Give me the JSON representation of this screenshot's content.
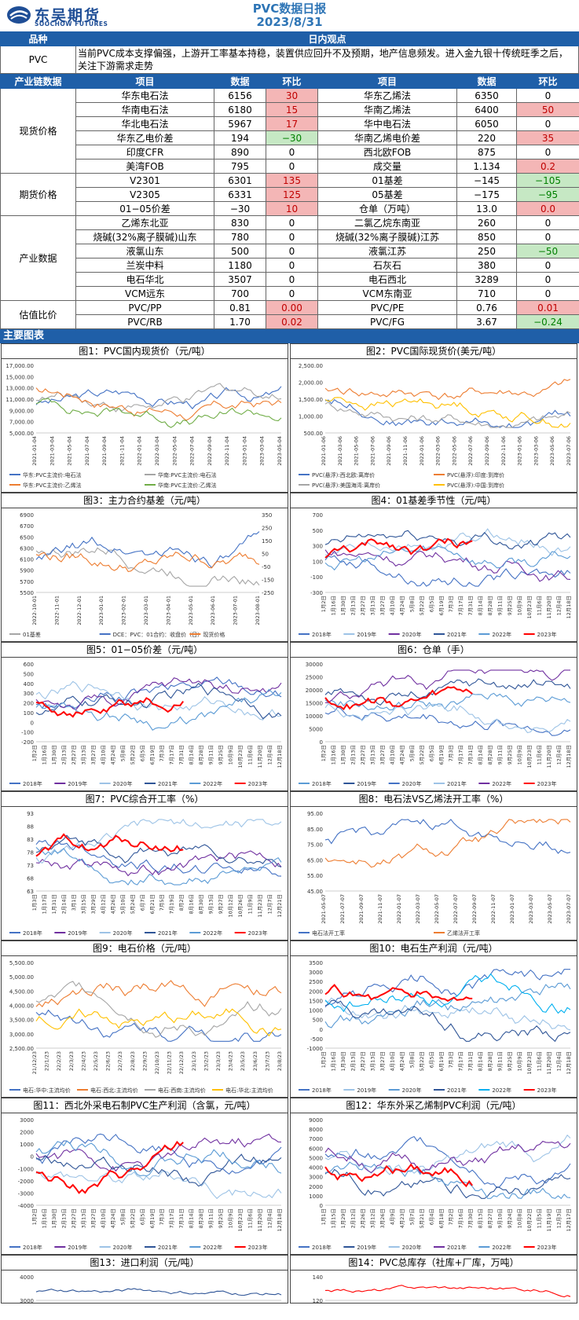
{
  "header": {
    "logo_cn": "东吴期货",
    "logo_en": "SOOCHOW FUTURES",
    "title": "PVC数据日报",
    "date": "2023/8/31"
  },
  "view": {
    "col1": "品种",
    "col2": "日内观点",
    "product": "PVC",
    "text": "当前PVC成本支撑偏强，上游开工率基本持稳，装置供应回升不及预期，地产信息频发。进入金九银十传统旺季之后，关注下游需求走势"
  },
  "table_header": [
    "产业链数据",
    "项目",
    "数据",
    "环比",
    "项目",
    "数据",
    "环比"
  ],
  "groups": [
    {
      "name": "现货价格",
      "rows": [
        [
          "华东电石法",
          "6156",
          "30",
          "r",
          "华东乙烯法",
          "6350",
          "0",
          ""
        ],
        [
          "华南电石法",
          "6180",
          "15",
          "r",
          "华南乙烯法",
          "6400",
          "50",
          "r"
        ],
        [
          "华北电石法",
          "5967",
          "17",
          "r",
          "华中电石法",
          "6050",
          "0",
          ""
        ],
        [
          "华东乙电价差",
          "194",
          "−30",
          "g",
          "华南乙烯电价差",
          "220",
          "35",
          "r"
        ],
        [
          "印度CFR",
          "890",
          "0",
          "",
          "西北欧FOB",
          "875",
          "0",
          ""
        ],
        [
          "美湾FOB",
          "795",
          "0",
          "",
          "成交量",
          "1.134",
          "0.2",
          "r"
        ]
      ]
    },
    {
      "name": "期货价格",
      "rows": [
        [
          "V2301",
          "6301",
          "135",
          "r",
          "01基差",
          "−145",
          "−105",
          "g"
        ],
        [
          "V2305",
          "6331",
          "125",
          "r",
          "05基差",
          "−175",
          "−95",
          "g"
        ],
        [
          "01−05价差",
          "−30",
          "10",
          "r",
          "仓单（万吨）",
          "13.0",
          "0.0",
          "r"
        ]
      ]
    },
    {
      "name": "产业数据",
      "rows": [
        [
          "乙烯东北亚",
          "830",
          "0",
          "",
          "二氯乙烷东南亚",
          "260",
          "0",
          ""
        ],
        [
          "烧碱(32%离子膜碱)山东",
          "780",
          "0",
          "",
          "烧碱(32%离子膜碱)江苏",
          "850",
          "0",
          ""
        ],
        [
          "液氯山东",
          "500",
          "0",
          "",
          "液氯江苏",
          "250",
          "−50",
          "g"
        ],
        [
          "兰炭中料",
          "1180",
          "0",
          "",
          "石灰石",
          "380",
          "0",
          ""
        ],
        [
          "电石华北",
          "3507",
          "0",
          "",
          "电石西北",
          "3289",
          "0",
          ""
        ],
        [
          "VCM远东",
          "700",
          "0",
          "",
          "VCM东南亚",
          "710",
          "0",
          ""
        ]
      ]
    },
    {
      "name": "估值比价",
      "rows": [
        [
          "PVC/PP",
          "0.81",
          "0.00",
          "r",
          "PVC/PE",
          "0.76",
          "0.01",
          "r"
        ],
        [
          "PVC/RB",
          "1.70",
          "0.02",
          "r",
          "PVC/FG",
          "3.67",
          "−0.24",
          "g"
        ]
      ]
    }
  ],
  "charts_title": "主要图表",
  "charts": [
    {
      "title": "图1：PVC国内现货价（元/吨）",
      "yticks": [
        "17,000.00",
        "15,000.00",
        "13,000.00",
        "11,000.00",
        "9,000.00",
        "7,000.00",
        "5,000.00"
      ],
      "xticks": [
        "2021-01-04",
        "2021-03-04",
        "2021-05-04",
        "2021-07-04",
        "2021-09-04",
        "2021-11-04",
        "2022-01-04",
        "2022-03-04",
        "2022-05-04",
        "2022-07-04",
        "2022-09-04",
        "2022-11-04",
        "2023-01-04",
        "2023-03-04",
        "2023-05-04"
      ],
      "legend": [
        "华东:PVC主流价:电石法",
        "华南:PVC主流价:电石法",
        "华东:PVC主流价:乙烯法",
        "华南:PVC主流价:乙烯法"
      ],
      "colors": [
        "#4472c4",
        "#a5a5a5",
        "#ed7d31",
        "#70ad47"
      ]
    },
    {
      "title": "图2：PVC国际现货价(美元/吨）",
      "yticks": [
        "2,500.00",
        "2,000.00",
        "1,500.00",
        "1,000.00",
        "500.00"
      ],
      "xticks": [
        "2021-01-06",
        "2021-03-06",
        "2021-05-06",
        "2021-07-06",
        "2021-09-06",
        "2021-11-06",
        "2022-01-06",
        "2022-03-06",
        "2022-05-06",
        "2022-07-06",
        "2022-09-06",
        "2022-11-06",
        "2023-01-06",
        "2023-03-06",
        "2023-05-06",
        "2023-07-06"
      ],
      "legend": [
        "PVC(悬浮):西北欧:离岸价",
        "PVC(悬浮):印度:到岸价",
        "PVC(悬浮):美国海湾:离岸价",
        "PVC(悬浮):中国:到岸价"
      ],
      "colors": [
        "#4472c4",
        "#ed7d31",
        "#a5a5a5",
        "#ffc000"
      ]
    },
    {
      "title": "图3：主力合约基差（元/吨）",
      "yticks": [
        "6900",
        "6700",
        "6500",
        "6300",
        "6100",
        "5900",
        "5700",
        "5500"
      ],
      "y2ticks": [
        "350",
        "250",
        "150",
        "50",
        "-50",
        "-150",
        "-250"
      ],
      "xticks": [
        "2022-10-01",
        "2022-11-01",
        "2022-12-01",
        "2023-01-01",
        "2023-02-01",
        "2023-03-01",
        "2023-04-01",
        "2023-05-01",
        "2023-06-01",
        "2023-07-01",
        "2023-08-01"
      ],
      "legend": [
        "01基差",
        "DCE：PVC：01合约：收盘价（日）",
        "现货价格"
      ],
      "colors": [
        "#a5a5a5",
        "#4472c4",
        "#ed7d31"
      ]
    },
    {
      "title": "图4：01基差季节性（元/吨）",
      "yticks": [
        "700",
        "500",
        "300",
        "100",
        "-100",
        "-300"
      ],
      "xticks": [
        "1月2日",
        "1月16日",
        "1月30日",
        "2月13日",
        "2月27日",
        "3月13日",
        "3月27日",
        "4月10日",
        "4月24日",
        "5月8日",
        "5月22日",
        "6月5日",
        "6月19日",
        "7月3日",
        "7月17日",
        "7月31日",
        "8月14日",
        "8月28日",
        "9月11日",
        "9月25日",
        "10月9日",
        "10月23日",
        "11月6日",
        "11月20日",
        "12月4日",
        "12月18日"
      ],
      "legend": [
        "2018年",
        "2019年",
        "2020年",
        "2021年",
        "2022年",
        "2023年"
      ],
      "colors": [
        "#4472c4",
        "#9dc3e6",
        "#7030a0",
        "#2f5597",
        "#5b9bd5",
        "#ff0000"
      ]
    },
    {
      "title": "图5：01−05价差（元/吨）",
      "yticks": [
        "600",
        "500",
        "400",
        "300",
        "200",
        "100",
        "0",
        "-100",
        "-200"
      ],
      "xticks": [
        "1月2日",
        "1月16日",
        "1月30日",
        "2月13日",
        "2月27日",
        "3月13日",
        "3月27日",
        "4月10日",
        "4月24日",
        "5月8日",
        "5月22日",
        "6月5日",
        "6月19日",
        "7月3日",
        "7月17日",
        "7月31日",
        "8月14日",
        "8月28日",
        "9月11日",
        "9月25日",
        "10月9日",
        "10月23日",
        "11月6日",
        "11月20日",
        "12月4日",
        "12月18日"
      ],
      "legend": [
        "2018年",
        "2019年",
        "2020年",
        "2021年",
        "2022年",
        "2023年"
      ],
      "colors": [
        "#4472c4",
        "#7030a0",
        "#9dc3e6",
        "#2f5597",
        "#5b9bd5",
        "#ff0000"
      ]
    },
    {
      "title": "图6：仓单（手）",
      "yticks": [
        "30000",
        "25000",
        "20000",
        "15000",
        "10000",
        "5000",
        "0"
      ],
      "xticks": [
        "1月2日",
        "1月16日",
        "1月30日",
        "2月13日",
        "2月27日",
        "3月13日",
        "3月27日",
        "4月10日",
        "4月24日",
        "5月8日",
        "5月22日",
        "6月5日",
        "6月19日",
        "7月3日",
        "7月17日",
        "7月31日",
        "8月14日",
        "8月28日",
        "9月11日",
        "9月25日",
        "10月9日",
        "10月23日",
        "11月6日",
        "11月20日",
        "12月4日",
        "12月18日"
      ],
      "legend": [
        "2018年",
        "2019年",
        "2020年",
        "2021年",
        "2022年",
        "2023年"
      ],
      "colors": [
        "#5b9bd5",
        "#2f5597",
        "#4472c4",
        "#9dc3e6",
        "#7030a0",
        "#ff0000"
      ]
    },
    {
      "title": "图7：PVC综合开工率（%）",
      "yticks": [
        "93",
        "88",
        "83",
        "78",
        "73",
        "68",
        "63"
      ],
      "xticks": [
        "1月3日",
        "1月17日",
        "1月31日",
        "2月14日",
        "3月1日",
        "3月15日",
        "3月29日",
        "4月12日",
        "4月26日",
        "5月10日",
        "5月24日",
        "6月7日",
        "6月21日",
        "7月5日",
        "7月19日",
        "8月2日",
        "8月16日",
        "8月30日",
        "9月13日",
        "9月27日",
        "10月12日",
        "10月26日",
        "11月9日",
        "11月23日",
        "12月7日",
        "12月21日"
      ],
      "legend": [
        "2018年",
        "2019年",
        "2020年",
        "2021年",
        "2022年",
        "2023年"
      ],
      "colors": [
        "#4472c4",
        "#7030a0",
        "#9dc3e6",
        "#2f5597",
        "#5b9bd5",
        "#ff0000"
      ]
    },
    {
      "title": "图8：电石法VS乙烯法开工率（%）",
      "yticks": [
        "95.00",
        "85.00",
        "75.00",
        "65.00",
        "55.00",
        "45.00"
      ],
      "xticks": [
        "2021-05-07",
        "2021-07-07",
        "2021-09-07",
        "2021-11-07",
        "2022-01-07",
        "2022-03-07",
        "2022-05-07",
        "2022-07-07",
        "2022-09-07",
        "2022-11-07",
        "2023-01-07",
        "2023-03-07",
        "2023-05-07",
        "2023-07-07"
      ],
      "legend": [
        "电石法开工率",
        "乙烯法开工率"
      ],
      "colors": [
        "#4472c4",
        "#ed7d31"
      ]
    },
    {
      "title": "图9：电石价格（元/吨）",
      "yticks": [
        "5,500.00",
        "5,000.00",
        "4,500.00",
        "4,000.00",
        "3,500.00",
        "3,000.00",
        "2,500.00"
      ],
      "xticks": [
        "21/12/23",
        "22/1/23",
        "22/2/23",
        "22/3/23",
        "22/4/23",
        "22/5/23",
        "22/6/23",
        "22/7/23",
        "22/8/23",
        "22/9/23",
        "22/10/23",
        "22/11/23",
        "22/12/23",
        "23/1/23",
        "23/2/23",
        "23/3/23",
        "23/4/23",
        "23/5/23",
        "23/6/23",
        "23/7/23",
        "23/8/23"
      ],
      "legend": [
        "电石:华中:主流均价",
        "电石:西北:主流均价",
        "电石:西南:主流均价",
        "电石:华北:主流均价"
      ],
      "colors": [
        "#4472c4",
        "#ed7d31",
        "#a5a5a5",
        "#ffc000"
      ]
    },
    {
      "title": "图10：电石生产利润（元/吨）",
      "yticks": [
        "3500",
        "3000",
        "2500",
        "2000",
        "1500",
        "1000",
        "500",
        "0",
        "-500",
        "-1000"
      ],
      "xticks": [
        "1月2日",
        "1月16日",
        "1月30日",
        "2月13日",
        "2月27日",
        "3月13日",
        "3月27日",
        "4月10日",
        "4月24日",
        "5月8日",
        "5月22日",
        "6月5日",
        "6月19日",
        "7月3日",
        "7月17日",
        "7月31日",
        "8月14日",
        "8月28日",
        "9月11日",
        "9月25日",
        "10月9日",
        "10月23日",
        "11月6日",
        "11月20日",
        "12月4日",
        "12月18日"
      ],
      "legend": [
        "2018年",
        "2019年",
        "2020年",
        "2021年",
        "2022年",
        "2023年"
      ],
      "colors": [
        "#4472c4",
        "#9dc3e6",
        "#5b9bd5",
        "#2f5597",
        "#00b0f0",
        "#ff0000"
      ]
    },
    {
      "title": "图11：西北外采电石制PVC生产利润（含氯，元/吨）",
      "yticks": [
        "3000",
        "2000",
        "1000",
        "0",
        "-1000",
        "-2000",
        "-3000",
        "-4000"
      ],
      "xticks": [
        "1月2日",
        "1月16日",
        "1月30日",
        "2月13日",
        "2月27日",
        "3月13日",
        "3月27日",
        "4月10日",
        "4月24日",
        "5月8日",
        "5月22日",
        "6月5日",
        "6月19日",
        "7月3日",
        "7月17日",
        "7月31日",
        "8月14日",
        "8月28日",
        "9月11日",
        "9月25日",
        "10月9日",
        "10月23日",
        "11月6日",
        "11月20日",
        "12月4日",
        "12月18日"
      ],
      "legend": [
        "2018年",
        "2019年",
        "2020年",
        "2021年",
        "2022年",
        "2023年"
      ],
      "colors": [
        "#4472c4",
        "#7030a0",
        "#9dc3e6",
        "#2f5597",
        "#5b9bd5",
        "#ff0000"
      ]
    },
    {
      "title": "图12：华东外采乙烯制PVC利润（元/吨）",
      "yticks": [
        "9000",
        "8000",
        "7000",
        "6000",
        "5000",
        "4000",
        "3000",
        "2000",
        "1000",
        "0"
      ],
      "xticks": [
        "1月1日",
        "1月15日",
        "1月29日",
        "2月12日",
        "2月26日",
        "3月12日",
        "3月26日",
        "4月9日",
        "4月23日",
        "5月7日",
        "5月21日",
        "6月4日",
        "6月18日",
        "7月2日",
        "7月16日",
        "7月30日",
        "8月13日",
        "8月27日",
        "9月10日",
        "9月24日",
        "10月8日",
        "10月22日",
        "11月5日",
        "11月19日",
        "12月3日",
        "12月17日"
      ],
      "legend": [
        "2018年",
        "2019年",
        "2020年",
        "2021年",
        "2022年",
        "2023年"
      ],
      "colors": [
        "#4472c4",
        "#2f5597",
        "#9dc3e6",
        "#7030a0",
        "#5b9bd5",
        "#ff0000"
      ]
    },
    {
      "title": "图13：进口利润（元/吨）",
      "yticks": [
        "4000",
        "3000"
      ],
      "xticks": [],
      "legend": [],
      "colors": [
        "#2f5597"
      ]
    },
    {
      "title": "图14：PVC总库存（社库+厂库，万吨）",
      "yticks": [
        "140",
        "120"
      ],
      "xticks": [],
      "legend": [],
      "colors": [
        "#ff0000"
      ]
    }
  ]
}
